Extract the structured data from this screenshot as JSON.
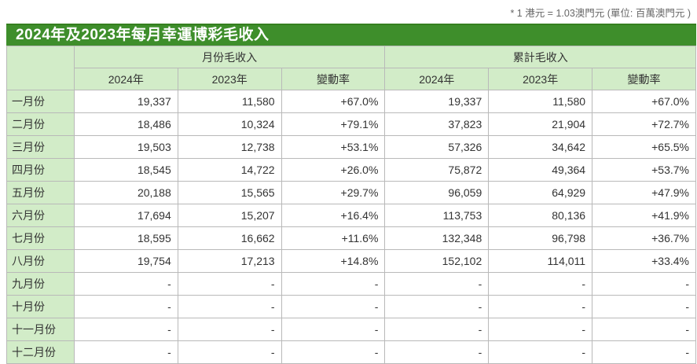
{
  "note": "* 1 港元 = 1.03澳門元 (單位: 百萬澳門元 )",
  "title": "2024年及2023年每月幸運博彩毛收入",
  "colors": {
    "title_bg": "#3e8e2b",
    "title_edge": "#35801f",
    "header_bg": "#d2ecc8",
    "border": "#b9b9b9",
    "title_text": "#ffffff",
    "cell_text": "#333333",
    "note_text": "#666666"
  },
  "table": {
    "group_headers": [
      "月份毛收入",
      "累計毛收入"
    ],
    "sub_headers": [
      "2024年",
      "2023年",
      "變動率",
      "2024年",
      "2023年",
      "變動率"
    ],
    "rows": [
      {
        "month": "一月份",
        "values": [
          "19,337",
          "11,580",
          "+67.0%",
          "19,337",
          "11,580",
          "+67.0%"
        ]
      },
      {
        "month": "二月份",
        "values": [
          "18,486",
          "10,324",
          "+79.1%",
          "37,823",
          "21,904",
          "+72.7%"
        ]
      },
      {
        "month": "三月份",
        "values": [
          "19,503",
          "12,738",
          "+53.1%",
          "57,326",
          "34,642",
          "+65.5%"
        ]
      },
      {
        "month": "四月份",
        "values": [
          "18,545",
          "14,722",
          "+26.0%",
          "75,872",
          "49,364",
          "+53.7%"
        ]
      },
      {
        "month": "五月份",
        "values": [
          "20,188",
          "15,565",
          "+29.7%",
          "96,059",
          "64,929",
          "+47.9%"
        ]
      },
      {
        "month": "六月份",
        "values": [
          "17,694",
          "15,207",
          "+16.4%",
          "113,753",
          "80,136",
          "+41.9%"
        ]
      },
      {
        "month": "七月份",
        "values": [
          "18,595",
          "16,662",
          "+11.6%",
          "132,348",
          "96,798",
          "+36.7%"
        ]
      },
      {
        "month": "八月份",
        "values": [
          "19,754",
          "17,213",
          "+14.8%",
          "152,102",
          "114,011",
          "+33.4%"
        ]
      },
      {
        "month": "九月份",
        "values": [
          "-",
          "-",
          "-",
          "-",
          "-",
          "-"
        ]
      },
      {
        "month": "十月份",
        "values": [
          "-",
          "-",
          "-",
          "-",
          "-",
          "-"
        ]
      },
      {
        "month": "十一月份",
        "values": [
          "-",
          "-",
          "-",
          "-",
          "-",
          "-"
        ]
      },
      {
        "month": "十二月份",
        "values": [
          "-",
          "-",
          "-",
          "-",
          "-",
          "-"
        ]
      }
    ]
  }
}
